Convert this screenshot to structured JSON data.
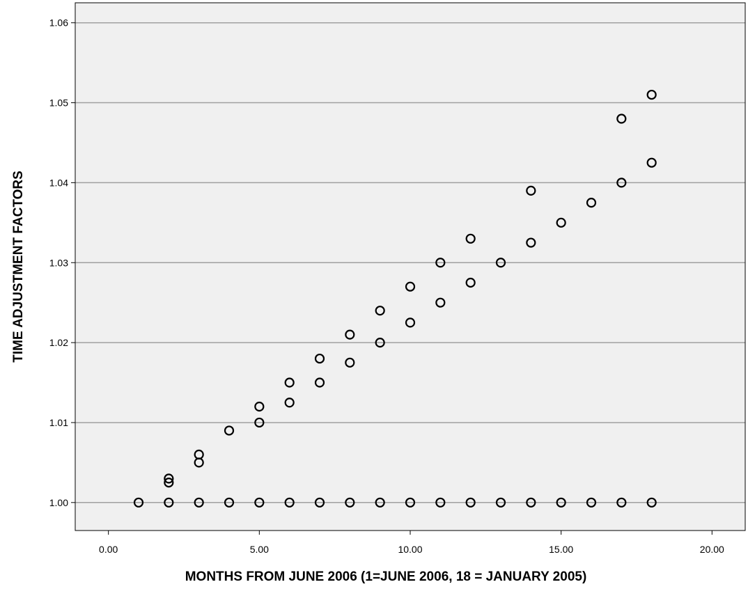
{
  "chart_data": {
    "type": "scatter",
    "title": "",
    "xlabel": "MONTHS FROM JUNE 2006 (1=JUNE 2006, 18 = JANUARY 2005)",
    "ylabel": "TIME ADJUSTMENT FACTORS",
    "xlim": [
      -1.1,
      21.1
    ],
    "ylim": [
      0.9965,
      1.0625
    ],
    "x_ticks": [
      0,
      5,
      10,
      15,
      20
    ],
    "x_tick_labels": [
      "0.00",
      "5.00",
      "10.00",
      "15.00",
      "20.00"
    ],
    "y_ticks": [
      1.0,
      1.01,
      1.02,
      1.03,
      1.04,
      1.05,
      1.06
    ],
    "y_tick_labels": [
      "1.00",
      "1.01",
      "1.02",
      "1.03",
      "1.04",
      "1.05",
      "1.06"
    ],
    "grid": "horizontal",
    "background_color": "#f0f0f0",
    "grid_color": "#a0a0a0",
    "marker": "open-circle",
    "points": [
      [
        1,
        1.0
      ],
      [
        2,
        1.0
      ],
      [
        2,
        1.0025
      ],
      [
        2,
        1.003
      ],
      [
        3,
        1.0
      ],
      [
        3,
        1.005
      ],
      [
        3,
        1.006
      ],
      [
        4,
        1.0
      ],
      [
        4,
        1.009
      ],
      [
        5,
        1.0
      ],
      [
        5,
        1.01
      ],
      [
        5,
        1.012
      ],
      [
        6,
        1.0
      ],
      [
        6,
        1.0125
      ],
      [
        6,
        1.015
      ],
      [
        7,
        1.0
      ],
      [
        7,
        1.015
      ],
      [
        7,
        1.018
      ],
      [
        8,
        1.0
      ],
      [
        8,
        1.0175
      ],
      [
        8,
        1.021
      ],
      [
        9,
        1.0
      ],
      [
        9,
        1.02
      ],
      [
        9,
        1.024
      ],
      [
        10,
        1.0
      ],
      [
        10,
        1.0225
      ],
      [
        10,
        1.027
      ],
      [
        11,
        1.0
      ],
      [
        11,
        1.025
      ],
      [
        11,
        1.03
      ],
      [
        12,
        1.0
      ],
      [
        12,
        1.0275
      ],
      [
        12,
        1.033
      ],
      [
        13,
        1.0
      ],
      [
        13,
        1.03
      ],
      [
        14,
        1.0
      ],
      [
        14,
        1.0325
      ],
      [
        14,
        1.039
      ],
      [
        15,
        1.0
      ],
      [
        15,
        1.035
      ],
      [
        16,
        1.0
      ],
      [
        16,
        1.0375
      ],
      [
        17,
        1.0
      ],
      [
        17,
        1.04
      ],
      [
        17,
        1.048
      ],
      [
        18,
        1.0
      ],
      [
        18,
        1.0425
      ],
      [
        18,
        1.051
      ]
    ]
  }
}
